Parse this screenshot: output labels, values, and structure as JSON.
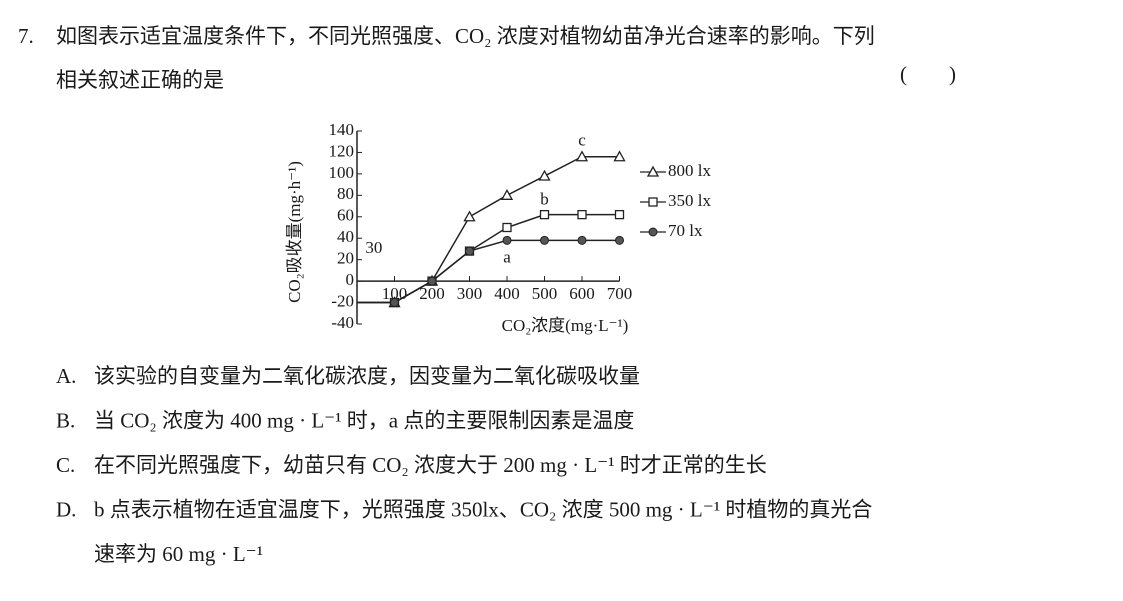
{
  "question": {
    "number": "7.",
    "stem": [
      "如图表示适宜温度条件下，不同光照强度、CO₂ 浓度对植物幼苗净光合速率的影响。下列",
      "相关叙述正确的是"
    ],
    "bracket": "(        )",
    "chart_data": {
      "type": "line",
      "ylabel": "CO₂吸收量(mg·h⁻¹)",
      "xlabel": "CO₂浓度(mg·L⁻¹)",
      "x": [
        0,
        100,
        200,
        300,
        400,
        500,
        600,
        700
      ],
      "series": [
        {
          "name": "800 lx",
          "color": "#222222",
          "marker": "triangle",
          "values": [
            -20,
            -20,
            0,
            60,
            80,
            98,
            116,
            116
          ]
        },
        {
          "name": "350 lx",
          "color": "#222222",
          "marker": "square",
          "values": [
            -20,
            -20,
            0,
            28,
            50,
            62,
            62,
            62
          ]
        },
        {
          "name": "70 lx",
          "color": "#222222",
          "marker": "circle",
          "values": [
            -20,
            -20,
            0,
            28,
            38,
            38,
            38,
            38
          ]
        }
      ],
      "xlim": [
        0,
        700
      ],
      "xticks": [
        100,
        200,
        300,
        400,
        500,
        600,
        700
      ],
      "ylim": [
        -40,
        140
      ],
      "yticks": [
        -40,
        -20,
        0,
        20,
        40,
        60,
        80,
        100,
        120,
        140
      ],
      "annotations": [
        {
          "text": "a",
          "x": 400,
          "y": 21
        },
        {
          "text": "b",
          "x": 500,
          "y": 75
        },
        {
          "text": "c",
          "x": 600,
          "y": 130
        },
        {
          "text": "30",
          "x": 45,
          "y": 30
        }
      ]
    },
    "options": [
      {
        "label": "A.",
        "lines": [
          "该实验的自变量为二氧化碳浓度，因变量为二氧化碳吸收量"
        ]
      },
      {
        "label": "B.",
        "lines": [
          "当 CO₂ 浓度为 400 mg · L⁻¹ 时，a 点的主要限制因素是温度"
        ]
      },
      {
        "label": "C.",
        "lines": [
          "在不同光照强度下，幼苗只有 CO₂ 浓度大于 200 mg · L⁻¹ 时才正常的生长"
        ]
      },
      {
        "label": "D.",
        "lines": [
          "b 点表示植物在适宜温度下，光照强度 350lx、CO₂ 浓度 500 mg · L⁻¹ 时植物的真光合",
          "速率为 60 mg · L⁻¹"
        ]
      }
    ]
  }
}
